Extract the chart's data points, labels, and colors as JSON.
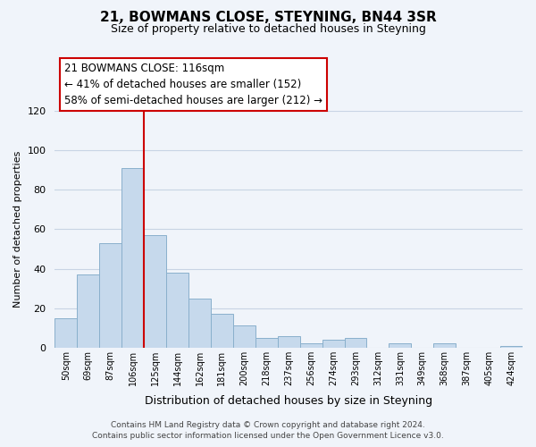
{
  "title": "21, BOWMANS CLOSE, STEYNING, BN44 3SR",
  "subtitle": "Size of property relative to detached houses in Steyning",
  "xlabel": "Distribution of detached houses by size in Steyning",
  "ylabel": "Number of detached properties",
  "bar_labels": [
    "50sqm",
    "69sqm",
    "87sqm",
    "106sqm",
    "125sqm",
    "144sqm",
    "162sqm",
    "181sqm",
    "200sqm",
    "218sqm",
    "237sqm",
    "256sqm",
    "274sqm",
    "293sqm",
    "312sqm",
    "331sqm",
    "349sqm",
    "368sqm",
    "387sqm",
    "405sqm",
    "424sqm"
  ],
  "bar_values": [
    15,
    37,
    53,
    91,
    57,
    38,
    25,
    17,
    11,
    5,
    6,
    2,
    4,
    5,
    0,
    2,
    0,
    2,
    0,
    0,
    1
  ],
  "bar_color": "#c6d9ec",
  "bar_edge_color": "#8ab0cc",
  "vline_x_idx": 3,
  "vline_color": "#cc0000",
  "ylim": [
    0,
    120
  ],
  "yticks": [
    0,
    20,
    40,
    60,
    80,
    100,
    120
  ],
  "annotation_title": "21 BOWMANS CLOSE: 116sqm",
  "annotation_line1": "← 41% of detached houses are smaller (152)",
  "annotation_line2": "58% of semi-detached houses are larger (212) →",
  "annotation_box_color": "#ffffff",
  "annotation_box_edge": "#cc0000",
  "footer_line1": "Contains HM Land Registry data © Crown copyright and database right 2024.",
  "footer_line2": "Contains public sector information licensed under the Open Government Licence v3.0.",
  "bg_color": "#f0f4fa",
  "grid_color": "#c8d4e4"
}
